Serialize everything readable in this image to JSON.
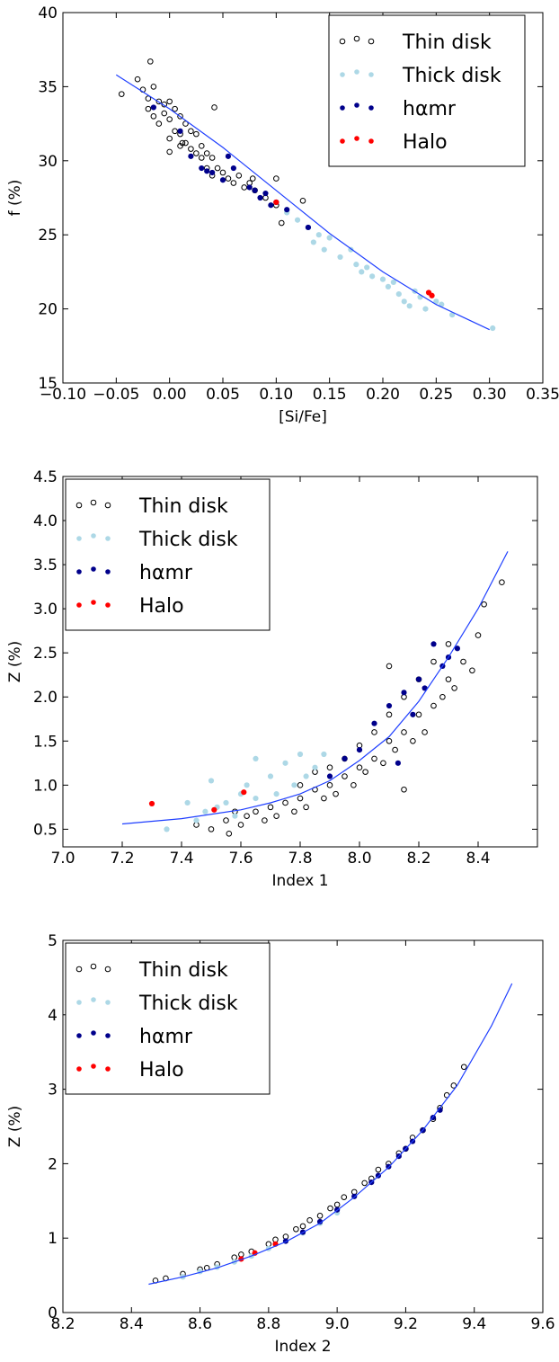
{
  "colors": {
    "thin": "#000000",
    "thick": "#add8e6",
    "hamr": "#00008b",
    "halo": "#ff0000",
    "fit": "#1f3fff"
  },
  "chart_data": [
    {
      "type": "scatter",
      "xlabel": "[Si/Fe]",
      "ylabel": "f (%)",
      "xlim": [
        -0.1,
        0.35
      ],
      "ylim": [
        15,
        40
      ],
      "xticks": [
        "−0.10",
        "−0.05",
        "0.00",
        "0.05",
        "0.10",
        "0.15",
        "0.20",
        "0.25",
        "0.30",
        "0.35"
      ],
      "xtickvals": [
        -0.1,
        -0.05,
        0.0,
        0.05,
        0.1,
        0.15,
        0.2,
        0.25,
        0.3,
        0.35
      ],
      "yticks": [
        "15",
        "20",
        "25",
        "30",
        "35",
        "40"
      ],
      "ytickvals": [
        15,
        20,
        25,
        30,
        35,
        40
      ],
      "legend_position": "top-right",
      "legend": [
        "Thin disk",
        "Thick disk",
        "hαmr",
        "Halo"
      ],
      "fit_curve": {
        "x": [
          -0.05,
          0.0,
          0.05,
          0.1,
          0.15,
          0.2,
          0.25,
          0.3
        ],
        "y": [
          35.8,
          33.5,
          30.9,
          28.0,
          25.1,
          22.5,
          20.3,
          18.6
        ]
      },
      "series": [
        {
          "name": "Thin disk",
          "style": "open",
          "x": [
            -0.045,
            -0.03,
            -0.025,
            -0.02,
            -0.02,
            -0.015,
            -0.015,
            -0.01,
            -0.01,
            -0.005,
            -0.005,
            0.0,
            0.0,
            0.0,
            0.005,
            0.005,
            0.01,
            0.01,
            0.01,
            0.015,
            0.015,
            0.02,
            0.02,
            0.025,
            0.025,
            0.03,
            0.03,
            0.035,
            0.035,
            0.04,
            0.04,
            0.045,
            0.05,
            0.055,
            0.06,
            0.065,
            0.07,
            0.075,
            0.08,
            0.09,
            0.1,
            0.105,
            0.125,
            -0.018,
            0.0,
            0.012,
            0.042,
            0.078,
            0.1
          ],
          "y": [
            34.5,
            35.5,
            34.8,
            34.2,
            33.5,
            35.0,
            33.0,
            34.0,
            32.5,
            33.8,
            33.2,
            34.0,
            32.8,
            31.5,
            33.5,
            32.0,
            33.0,
            31.8,
            31.0,
            32.5,
            31.2,
            32.0,
            30.8,
            31.8,
            30.5,
            31.0,
            30.2,
            30.5,
            29.5,
            30.2,
            29.0,
            29.5,
            29.2,
            28.8,
            28.5,
            29.0,
            28.2,
            28.5,
            28.0,
            27.5,
            28.8,
            25.8,
            27.3,
            36.7,
            30.6,
            31.2,
            33.6,
            28.8,
            27.0
          ]
        },
        {
          "name": "Thick disk",
          "style": "filled",
          "x": [
            0.11,
            0.12,
            0.13,
            0.135,
            0.14,
            0.145,
            0.15,
            0.16,
            0.17,
            0.175,
            0.18,
            0.185,
            0.19,
            0.2,
            0.205,
            0.21,
            0.215,
            0.22,
            0.225,
            0.23,
            0.235,
            0.24,
            0.25,
            0.255,
            0.265,
            0.303
          ],
          "y": [
            26.5,
            26.0,
            25.5,
            24.5,
            25.0,
            24.0,
            24.8,
            23.5,
            24.0,
            23.0,
            22.5,
            22.8,
            22.2,
            22.0,
            21.5,
            21.8,
            21.0,
            20.5,
            20.2,
            21.2,
            20.8,
            20.0,
            20.5,
            20.3,
            19.6,
            18.7
          ]
        },
        {
          "name": "hαmr",
          "style": "filled",
          "x": [
            -0.015,
            0.01,
            0.02,
            0.03,
            0.035,
            0.04,
            0.05,
            0.055,
            0.06,
            0.075,
            0.08,
            0.085,
            0.09,
            0.095,
            0.1,
            0.11,
            0.13
          ],
          "y": [
            33.6,
            32.0,
            30.3,
            29.5,
            29.3,
            29.2,
            28.7,
            30.3,
            29.5,
            28.2,
            28.0,
            27.5,
            27.8,
            27.0,
            27.2,
            26.7,
            25.5
          ]
        },
        {
          "name": "Halo",
          "style": "filled",
          "x": [
            0.1,
            0.243,
            0.246
          ],
          "y": [
            27.2,
            21.1,
            20.9
          ]
        }
      ]
    },
    {
      "type": "scatter",
      "xlabel": "Index  1",
      "ylabel": "Z (%)",
      "xlim": [
        7.0,
        8.6
      ],
      "ylim": [
        0.3,
        4.5
      ],
      "xticks": [
        "7.0",
        "7.2",
        "7.4",
        "7.6",
        "7.8",
        "8.0",
        "8.2",
        "8.4"
      ],
      "xtickvals": [
        7.0,
        7.2,
        7.4,
        7.6,
        7.8,
        8.0,
        8.2,
        8.4
      ],
      "yticks": [
        "0.5",
        "1.0",
        "1.5",
        "2.0",
        "2.5",
        "3.0",
        "3.5",
        "4.0",
        "4.5"
      ],
      "ytickvals": [
        0.5,
        1.0,
        1.5,
        2.0,
        2.5,
        3.0,
        3.5,
        4.0,
        4.5
      ],
      "legend_position": "top-left",
      "legend": [
        "Thin disk",
        "Thick disk",
        "hαmr",
        "Halo"
      ],
      "fit_curve": {
        "x": [
          7.2,
          7.4,
          7.6,
          7.7,
          7.8,
          7.9,
          8.0,
          8.1,
          8.2,
          8.3,
          8.4,
          8.5
        ],
        "y": [
          0.56,
          0.62,
          0.72,
          0.8,
          0.9,
          1.05,
          1.28,
          1.55,
          1.95,
          2.45,
          3.0,
          3.65
        ]
      },
      "series": [
        {
          "name": "Thin disk",
          "style": "open",
          "x": [
            7.45,
            7.5,
            7.55,
            7.58,
            7.6,
            7.62,
            7.65,
            7.68,
            7.7,
            7.72,
            7.75,
            7.78,
            7.8,
            7.8,
            7.82,
            7.85,
            7.85,
            7.88,
            7.9,
            7.9,
            7.92,
            7.95,
            7.95,
            7.98,
            8.0,
            8.0,
            8.02,
            8.05,
            8.05,
            8.08,
            8.1,
            8.1,
            8.12,
            8.15,
            8.15,
            8.18,
            8.2,
            8.2,
            8.22,
            8.25,
            8.25,
            8.28,
            8.3,
            8.3,
            8.32,
            8.35,
            8.38,
            8.4,
            8.42,
            8.48,
            7.56,
            8.1,
            8.15
          ],
          "y": [
            0.55,
            0.5,
            0.6,
            0.7,
            0.55,
            0.65,
            0.7,
            0.6,
            0.75,
            0.65,
            0.8,
            0.7,
            0.85,
            1.0,
            0.75,
            0.95,
            1.15,
            0.85,
            1.0,
            1.2,
            0.9,
            1.1,
            1.3,
            1.0,
            1.2,
            1.45,
            1.15,
            1.3,
            1.6,
            1.25,
            1.5,
            1.8,
            1.4,
            1.6,
            2.0,
            1.5,
            1.8,
            2.2,
            1.6,
            1.9,
            2.4,
            2.0,
            2.2,
            2.6,
            2.1,
            2.4,
            2.3,
            2.7,
            3.05,
            3.3,
            0.45,
            2.35,
            0.95
          ]
        },
        {
          "name": "Thick disk",
          "style": "filled",
          "x": [
            7.35,
            7.42,
            7.45,
            7.48,
            7.5,
            7.52,
            7.55,
            7.58,
            7.6,
            7.62,
            7.65,
            7.65,
            7.7,
            7.72,
            7.75,
            7.78,
            7.8,
            7.82,
            7.85,
            7.88
          ],
          "y": [
            0.5,
            0.8,
            0.6,
            0.7,
            1.05,
            0.75,
            0.8,
            0.65,
            0.9,
            1.0,
            1.3,
            0.85,
            1.1,
            0.9,
            1.25,
            1.0,
            1.35,
            1.1,
            1.2,
            1.35
          ]
        },
        {
          "name": "hαmr",
          "style": "filled",
          "x": [
            7.9,
            7.95,
            8.0,
            8.05,
            8.1,
            8.13,
            8.15,
            8.18,
            8.2,
            8.22,
            8.25,
            8.28,
            8.3,
            8.33
          ],
          "y": [
            1.1,
            1.3,
            1.4,
            1.7,
            1.9,
            1.25,
            2.05,
            1.8,
            2.2,
            2.1,
            2.6,
            2.35,
            2.45,
            2.55
          ]
        },
        {
          "name": "Halo",
          "style": "filled",
          "x": [
            7.3,
            7.51,
            7.61
          ],
          "y": [
            0.79,
            0.72,
            0.92
          ]
        }
      ]
    },
    {
      "type": "scatter",
      "xlabel": "Index  2",
      "ylabel": "Z (%)",
      "xlim": [
        8.2,
        9.6
      ],
      "ylim": [
        0,
        5
      ],
      "xticks": [
        "8.2",
        "8.4",
        "8.6",
        "8.8",
        "9.0",
        "9.2",
        "9.4",
        "9.6"
      ],
      "xtickvals": [
        8.2,
        8.4,
        8.6,
        8.8,
        9.0,
        9.2,
        9.4,
        9.6
      ],
      "yticks": [
        "0",
        "1",
        "2",
        "3",
        "4",
        "5"
      ],
      "ytickvals": [
        0,
        1,
        2,
        3,
        4,
        5
      ],
      "legend_position": "top-left",
      "legend": [
        "Thin disk",
        "Thick disk",
        "hαmr",
        "Halo"
      ],
      "fit_curve": {
        "x": [
          8.45,
          8.55,
          8.65,
          8.75,
          8.85,
          8.95,
          9.05,
          9.15,
          9.25,
          9.35,
          9.45,
          9.51
        ],
        "y": [
          0.38,
          0.48,
          0.6,
          0.76,
          0.95,
          1.2,
          1.55,
          1.95,
          2.45,
          3.05,
          3.85,
          4.42
        ]
      },
      "series": [
        {
          "name": "Thin disk",
          "style": "open",
          "x": [
            8.47,
            8.5,
            8.55,
            8.6,
            8.62,
            8.65,
            8.7,
            8.72,
            8.75,
            8.8,
            8.82,
            8.85,
            8.88,
            8.9,
            8.92,
            8.95,
            8.98,
            9.0,
            9.02,
            9.05,
            9.08,
            9.1,
            9.12,
            9.15,
            9.18,
            9.2,
            9.22,
            9.25,
            9.28,
            9.3,
            9.32,
            9.34,
            9.37
          ],
          "y": [
            0.43,
            0.46,
            0.52,
            0.58,
            0.6,
            0.65,
            0.74,
            0.78,
            0.82,
            0.92,
            0.98,
            1.02,
            1.12,
            1.16,
            1.24,
            1.3,
            1.4,
            1.45,
            1.55,
            1.62,
            1.74,
            1.8,
            1.92,
            2.0,
            2.14,
            2.2,
            2.35,
            2.45,
            2.6,
            2.75,
            2.92,
            3.05,
            3.3
          ]
        },
        {
          "name": "Thick disk",
          "style": "filled",
          "x": [
            8.55,
            8.6,
            8.65,
            8.7,
            8.75,
            8.8,
            8.85,
            8.9,
            8.95,
            9.0
          ],
          "y": [
            0.48,
            0.55,
            0.61,
            0.68,
            0.76,
            0.86,
            0.96,
            1.07,
            1.2,
            1.34
          ]
        },
        {
          "name": "hαmr",
          "style": "filled",
          "x": [
            8.85,
            8.9,
            8.95,
            9.0,
            9.05,
            9.1,
            9.12,
            9.15,
            9.18,
            9.2,
            9.22,
            9.25,
            9.28,
            9.3
          ],
          "y": [
            0.96,
            1.08,
            1.22,
            1.38,
            1.56,
            1.75,
            1.84,
            1.96,
            2.1,
            2.2,
            2.3,
            2.45,
            2.62,
            2.72
          ]
        },
        {
          "name": "Halo",
          "style": "filled",
          "x": [
            8.72,
            8.76,
            8.82
          ],
          "y": [
            0.72,
            0.8,
            0.92
          ]
        }
      ]
    }
  ]
}
